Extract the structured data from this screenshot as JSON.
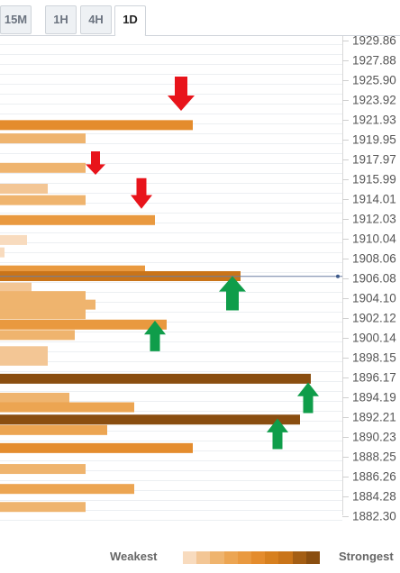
{
  "tabs": [
    {
      "label": "15M",
      "active": false
    },
    {
      "label": "1H",
      "active": false
    },
    {
      "label": "4H",
      "active": false
    },
    {
      "label": "1D",
      "active": true
    }
  ],
  "chart_data": {
    "type": "bar",
    "orientation": "horizontal",
    "y_ticks": [
      "1929.86",
      "1927.88",
      "1925.90",
      "1923.92",
      "1921.93",
      "1919.95",
      "1917.97",
      "1915.99",
      "1914.01",
      "1912.03",
      "1910.04",
      "1908.06",
      "1906.08",
      "1904.10",
      "1902.12",
      "1900.14",
      "1898.15",
      "1896.17",
      "1894.19",
      "1892.21",
      "1890.23",
      "1888.25",
      "1886.26",
      "1884.28",
      "1882.30"
    ],
    "ylim": [
      1881.3,
      1930.9
    ],
    "current_price": 1906.08,
    "x_max": 380,
    "levels": [
      {
        "price": 1922.0,
        "strength": 214,
        "shade": 5
      },
      {
        "price": 1920.6,
        "strength": 95,
        "shade": 2
      },
      {
        "price": 1917.5,
        "strength": 95,
        "shade": 2
      },
      {
        "price": 1915.3,
        "strength": 53,
        "shade": 1
      },
      {
        "price": 1914.1,
        "strength": 95,
        "shade": 2
      },
      {
        "price": 1912.0,
        "strength": 172,
        "shade": 4
      },
      {
        "price": 1909.9,
        "strength": 30,
        "shade": 0
      },
      {
        "price": 1908.6,
        "strength": 5,
        "shade": 0
      },
      {
        "price": 1906.7,
        "strength": 161,
        "shade": 4
      },
      {
        "price": 1906.1,
        "strength": 267,
        "shade": 7
      },
      {
        "price": 1904.9,
        "strength": 35,
        "shade": 1
      },
      {
        "price": 1904.0,
        "strength": 95,
        "shade": 2
      },
      {
        "price": 1903.1,
        "strength": 106,
        "shade": 2
      },
      {
        "price": 1902.1,
        "strength": 95,
        "shade": 2
      },
      {
        "price": 1901.0,
        "strength": 185,
        "shade": 4
      },
      {
        "price": 1899.9,
        "strength": 83,
        "shade": 2
      },
      {
        "price": 1898.2,
        "strength": 53,
        "shade": 1
      },
      {
        "price": 1897.2,
        "strength": 53,
        "shade": 1
      },
      {
        "price": 1895.3,
        "strength": 345,
        "shade": 9
      },
      {
        "price": 1893.3,
        "strength": 77,
        "shade": 2
      },
      {
        "price": 1892.3,
        "strength": 149,
        "shade": 3
      },
      {
        "price": 1891.0,
        "strength": 333,
        "shade": 9
      },
      {
        "price": 1889.9,
        "strength": 119,
        "shade": 3
      },
      {
        "price": 1888.0,
        "strength": 214,
        "shade": 5
      },
      {
        "price": 1885.8,
        "strength": 95,
        "shade": 2
      },
      {
        "price": 1883.7,
        "strength": 149,
        "shade": 3
      },
      {
        "price": 1881.8,
        "strength": 95,
        "shade": 2
      }
    ],
    "arrows": [
      {
        "direction": "down",
        "color": "#e8141b",
        "price": 1925.3,
        "x": 201,
        "size": "large"
      },
      {
        "direction": "down",
        "color": "#e8141b",
        "price": 1918.0,
        "x": 106,
        "size": "small"
      },
      {
        "direction": "down",
        "color": "#e8141b",
        "price": 1914.8,
        "x": 157,
        "size": "medium"
      },
      {
        "direction": "up",
        "color": "#0f9d4a",
        "price": 1904.3,
        "x": 258,
        "size": "large"
      },
      {
        "direction": "up",
        "color": "#0f9d4a",
        "price": 1899.8,
        "x": 172,
        "size": "medium"
      },
      {
        "direction": "up",
        "color": "#0f9d4a",
        "price": 1893.3,
        "x": 342,
        "size": "medium"
      },
      {
        "direction": "up",
        "color": "#0f9d4a",
        "price": 1889.5,
        "x": 308,
        "size": "medium"
      }
    ],
    "legend": {
      "weak_label": "Weakest",
      "strong_label": "Strongest"
    },
    "palette": [
      "#f8dbbe",
      "#f3c695",
      "#efb46e",
      "#eca552",
      "#e9993f",
      "#e48c2d",
      "#d7801f",
      "#c97419",
      "#a45e14",
      "#8a4e10"
    ]
  }
}
